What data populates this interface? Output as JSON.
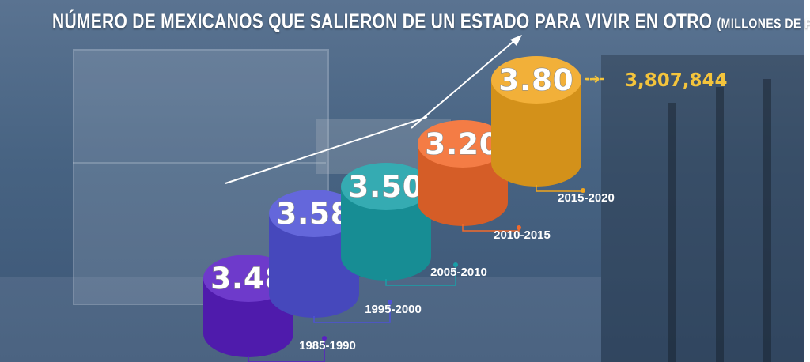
{
  "chart_data": {
    "type": "bar",
    "title": "NÚMERO DE MEXICANOS QUE SALIERON DE UN ESTADO PARA VIVIR EN OTRO",
    "subtitle": "(MILLONES DE PERSONAS)",
    "categories": [
      "1985-1990",
      "1995-2000",
      "2005-2010",
      "2010-2015",
      "2015-2020"
    ],
    "values": [
      3.48,
      3.58,
      3.5,
      3.2,
      3.8
    ],
    "value_labels": [
      "3.48",
      "3.58",
      "3.50",
      "3.20",
      "3.80"
    ],
    "annotation": "3,807,844",
    "colors": [
      "#5a1fc4",
      "#4f52d6",
      "#1aa0a8",
      "#f26a2c",
      "#f0a51e"
    ],
    "annotation_color": "#f4c43c"
  }
}
